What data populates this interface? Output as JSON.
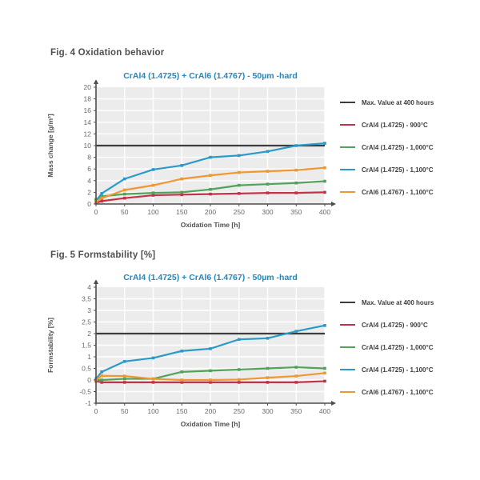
{
  "colors": {
    "background": "#ffffff",
    "plot_bg": "#ececec",
    "grid_line": "#ffffff",
    "axis": "#4d4d4d",
    "heading_text": "#4f4f4f",
    "title_text": "#2187bd",
    "max_line": "#3d3d3d",
    "red": "#c43249",
    "green": "#52a35a",
    "blue": "#2b9ac8",
    "orange": "#ef9733"
  },
  "figures": [
    {
      "heading": "Fig. 4 Oxidation behavior",
      "title": "CrAl4 (1.4725) + CrAl6 (1.4767) - 50µm -hard",
      "xlabel": "Oxidation Time [h]",
      "ylabel": "Mass change [g/m²]",
      "legend": [
        {
          "label": "Max. Value at 400 hours",
          "color": "#3d3d3d"
        },
        {
          "label": "CrAl4 (1.4725) - 900°C",
          "color": "#c43249"
        },
        {
          "label": "CrAl4 (1.4725) - 1,000°C",
          "color": "#52a35a"
        },
        {
          "label": "CrAl4 (1.4725) - 1,100°C",
          "color": "#2b9ac8"
        },
        {
          "label": "CrAl6 (1.4767) - 1,100°C",
          "color": "#ef9733"
        }
      ],
      "chart_data": {
        "type": "line",
        "title": "CrAl4 (1.4725) + CrAl6 (1.4767) - 50µm -hard",
        "xlabel": "Oxidation Time [h]",
        "ylabel": "Mass change [g/m²]",
        "xlim": [
          0,
          400
        ],
        "ylim": [
          0,
          20
        ],
        "grid": true,
        "legend_position": "right",
        "xtick_values": [
          0,
          50,
          100,
          150,
          200,
          250,
          300,
          350,
          400
        ],
        "xtick_labels": [
          "0",
          "50",
          "100",
          "150",
          "200",
          "250",
          "300",
          "350",
          "400"
        ],
        "ytick_values": [
          0,
          2,
          4,
          6,
          8,
          10,
          12,
          14,
          16,
          18,
          20
        ],
        "ytick_labels": [
          "0",
          "2",
          "4",
          "6",
          "8",
          "10",
          "12",
          "14",
          "16",
          "18",
          "20"
        ],
        "max_line": {
          "label": "Max. Value at 400 hours",
          "value": 10,
          "color": "#3d3d3d"
        },
        "x": [
          0,
          10,
          50,
          100,
          150,
          200,
          250,
          300,
          350,
          400
        ],
        "series": [
          {
            "name": "CrAl4 (1.4725) - 900°C",
            "color": "#c43249",
            "values": [
              0.2,
              0.5,
              1.0,
              1.5,
              1.6,
              1.7,
              1.8,
              1.9,
              1.9,
              2.0
            ]
          },
          {
            "name": "CrAl4 (1.4725) - 1,000°C",
            "color": "#52a35a",
            "values": [
              0.8,
              1.3,
              1.7,
              1.9,
              2.0,
              2.5,
              3.2,
              3.4,
              3.6,
              3.9
            ]
          },
          {
            "name": "CrAl4 (1.4725) - 1,100°C",
            "color": "#2b9ac8",
            "values": [
              0.5,
              1.8,
              4.3,
              5.9,
              6.6,
              8.0,
              8.3,
              9.0,
              10.0,
              10.4
            ]
          },
          {
            "name": "CrAl6 (1.4767) - 1,100°C",
            "color": "#ef9733",
            "values": [
              0.4,
              1.0,
              2.4,
              3.2,
              4.3,
              4.9,
              5.4,
              5.6,
              5.8,
              6.2
            ]
          }
        ]
      }
    },
    {
      "heading": "Fig. 5 Formstability [%]",
      "title": "CrAl4 (1.4725) + CrAl6 (1.4767) - 50µm -hard",
      "xlabel": "Oxidation Time [h]",
      "ylabel": "Formstability [%]",
      "legend": [
        {
          "label": "Max. Value at 400 hours",
          "color": "#3d3d3d"
        },
        {
          "label": "CrAl4 (1.4725) - 900°C",
          "color": "#c43249"
        },
        {
          "label": "CrAl4 (1.4725) - 1,000°C",
          "color": "#52a35a"
        },
        {
          "label": "CrAl4 (1.4725) - 1,100°C",
          "color": "#2b9ac8"
        },
        {
          "label": "CrAl6 (1.4767) - 1,100°C",
          "color": "#ef9733"
        }
      ],
      "chart_data": {
        "type": "line",
        "title": "CrAl4 (1.4725) + CrAl6 (1.4767) - 50µm -hard",
        "xlabel": "Oxidation Time [h]",
        "ylabel": "Formstability [%]",
        "xlim": [
          0,
          400
        ],
        "ylim": [
          -1,
          4
        ],
        "grid": true,
        "legend_position": "right",
        "xtick_values": [
          0,
          50,
          100,
          150,
          200,
          250,
          300,
          350,
          400
        ],
        "xtick_labels": [
          "0",
          "50",
          "100",
          "150",
          "200",
          "250",
          "300",
          "350",
          "400"
        ],
        "ytick_values": [
          4,
          3.5,
          3,
          2.5,
          2,
          1.5,
          1,
          0.5,
          0,
          -0.5,
          -1
        ],
        "ytick_labels": [
          "4",
          "3,5",
          "3",
          "2,5",
          "2",
          "1,5",
          "1",
          "0,5",
          "0",
          "-0,5",
          "-1"
        ],
        "max_line": {
          "label": "Max. Value at 400 hours",
          "value": 2,
          "color": "#3d3d3d"
        },
        "x": [
          0,
          10,
          50,
          100,
          150,
          200,
          250,
          300,
          350,
          400
        ],
        "series": [
          {
            "name": "CrAl4 (1.4725) - 900°C",
            "color": "#c43249",
            "values": [
              -0.05,
              -0.1,
              -0.1,
              -0.1,
              -0.1,
              -0.1,
              -0.1,
              -0.1,
              -0.1,
              -0.05
            ]
          },
          {
            "name": "CrAl4 (1.4725) - 1,000°C",
            "color": "#52a35a",
            "values": [
              0.0,
              0.0,
              0.05,
              0.05,
              0.35,
              0.4,
              0.45,
              0.5,
              0.55,
              0.5
            ]
          },
          {
            "name": "CrAl4 (1.4725) - 1,100°C",
            "color": "#2b9ac8",
            "values": [
              0.05,
              0.35,
              0.8,
              0.95,
              1.25,
              1.35,
              1.75,
              1.8,
              2.1,
              2.35
            ]
          },
          {
            "name": "CrAl6 (1.4767) - 1,100°C",
            "color": "#ef9733",
            "values": [
              0.0,
              0.18,
              0.17,
              0.05,
              0.0,
              0.0,
              0.02,
              0.1,
              0.17,
              0.3
            ]
          }
        ]
      }
    }
  ]
}
